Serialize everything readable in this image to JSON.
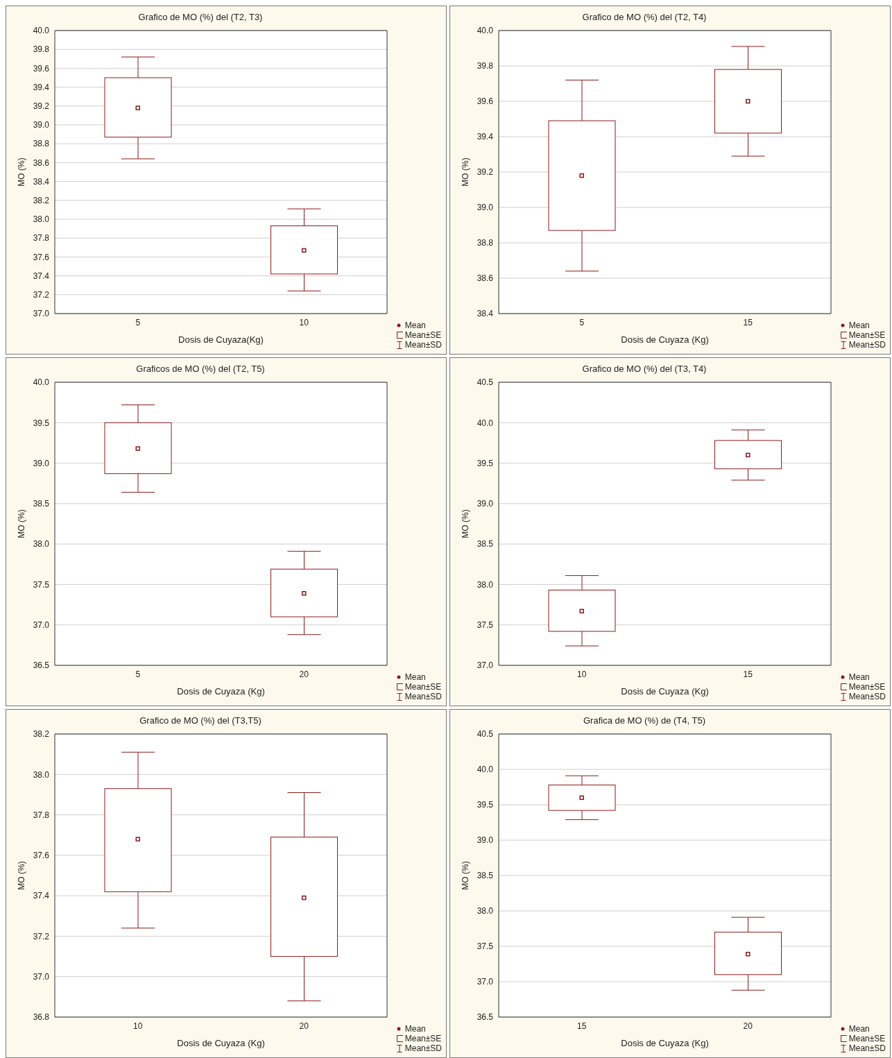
{
  "chart_data": [
    {
      "type": "box",
      "title": "Grafico de MO (%) del (T2, T3)",
      "xlabel": "Dosis de Cuyaza(Kg)",
      "ylabel": "MO (%)",
      "categories": [
        "5",
        "10"
      ],
      "color": "#8b1a1a",
      "marker": "square",
      "grid": "y",
      "ylim": [
        37.0,
        40.0
      ],
      "yticks": [
        {
          "value": 37.0,
          "label": "37.0"
        },
        {
          "value": 37.2,
          "label": "37.2"
        },
        {
          "value": 37.4,
          "label": "37.4"
        },
        {
          "value": 37.6,
          "label": "37.6"
        },
        {
          "value": 37.8,
          "label": "37.8"
        },
        {
          "value": 38.0,
          "label": "38.0"
        },
        {
          "value": 38.2,
          "label": "38.2"
        },
        {
          "value": 38.4,
          "label": "38.4"
        },
        {
          "value": 38.6,
          "label": "38.6"
        },
        {
          "value": 38.8,
          "label": "38.8"
        },
        {
          "value": 39.0,
          "label": "39.0"
        },
        {
          "value": 39.2,
          "label": "39.2"
        },
        {
          "value": 39.4,
          "label": "39.4"
        },
        {
          "value": 39.6,
          "label": "39.6"
        },
        {
          "value": 39.8,
          "label": "39.8"
        },
        {
          "value": 40.0,
          "label": "40.0"
        }
      ],
      "boxes": [
        {
          "low": 38.64,
          "q1": 38.87,
          "median": 39.18,
          "q3": 39.5,
          "high": 39.72
        },
        {
          "low": 37.24,
          "q1": 37.42,
          "median": 37.67,
          "q3": 37.93,
          "high": 38.11
        }
      ],
      "annotations": [
        "Mean",
        "Mean±SE",
        "Mean±SD"
      ]
    },
    {
      "type": "box",
      "title": "Grafico de MO (%) del (T2, T4)",
      "xlabel": "Dosis de Cuyaza (Kg)",
      "ylabel": "MO (%)",
      "categories": [
        "5",
        "15"
      ],
      "color": "#8b1a1a",
      "marker": "square",
      "grid": "y",
      "ylim": [
        38.4,
        40.0
      ],
      "yticks": [
        {
          "value": 38.4,
          "label": "38.4"
        },
        {
          "value": 38.6,
          "label": "38.6"
        },
        {
          "value": 38.8,
          "label": "38.8"
        },
        {
          "value": 39.0,
          "label": "39.0"
        },
        {
          "value": 39.2,
          "label": "39.2"
        },
        {
          "value": 39.4,
          "label": "39.4"
        },
        {
          "value": 39.6,
          "label": "39.6"
        },
        {
          "value": 39.8,
          "label": "39.8"
        },
        {
          "value": 40.0,
          "label": "40.0"
        }
      ],
      "boxes": [
        {
          "low": 38.64,
          "q1": 38.87,
          "median": 39.18,
          "q3": 39.49,
          "high": 39.72
        },
        {
          "low": 39.29,
          "q1": 39.42,
          "median": 39.6,
          "q3": 39.78,
          "high": 39.91
        }
      ],
      "annotations": [
        "Mean",
        "Mean±SE",
        "Mean±SD"
      ]
    },
    {
      "type": "box",
      "title": "Graficos de MO (%) del (T2, T5)",
      "xlabel": "Dosis de Cuyaza (Kg)",
      "ylabel": "MO (%)",
      "categories": [
        "5",
        "20"
      ],
      "color": "#8b1a1a",
      "marker": "square",
      "grid": "y",
      "ylim": [
        36.5,
        40.0
      ],
      "yticks": [
        {
          "value": 36.5,
          "label": "36.5"
        },
        {
          "value": 37.0,
          "label": "37.0"
        },
        {
          "value": 37.5,
          "label": "37.5"
        },
        {
          "value": 38.0,
          "label": "38.0"
        },
        {
          "value": 38.5,
          "label": "38.5"
        },
        {
          "value": 39.0,
          "label": "39.0"
        },
        {
          "value": 39.5,
          "label": "39.5"
        },
        {
          "value": 40.0,
          "label": "40.0"
        }
      ],
      "boxes": [
        {
          "low": 38.64,
          "q1": 38.87,
          "median": 39.18,
          "q3": 39.5,
          "high": 39.72
        },
        {
          "low": 36.88,
          "q1": 37.1,
          "median": 37.39,
          "q3": 37.69,
          "high": 37.91
        }
      ],
      "annotations": [
        "Mean",
        "Mean±SE",
        "Mean±SD"
      ]
    },
    {
      "type": "box",
      "title": "Grafico de MO (%) del (T3, T4)",
      "xlabel": "Dosis de Cuyaza (Kg)",
      "ylabel": "MO (%)",
      "categories": [
        "10",
        "15"
      ],
      "color": "#8b1a1a",
      "marker": "square",
      "grid": "y",
      "ylim": [
        37.0,
        40.5
      ],
      "yticks": [
        {
          "value": 37.0,
          "label": "37.0"
        },
        {
          "value": 37.5,
          "label": "37.5"
        },
        {
          "value": 38.0,
          "label": "38.0"
        },
        {
          "value": 38.5,
          "label": "38.5"
        },
        {
          "value": 39.0,
          "label": "39.0"
        },
        {
          "value": 39.5,
          "label": "39.5"
        },
        {
          "value": 40.0,
          "label": "40.0"
        },
        {
          "value": 40.5,
          "label": "40.5"
        }
      ],
      "boxes": [
        {
          "low": 37.24,
          "q1": 37.42,
          "median": 37.67,
          "q3": 37.93,
          "high": 38.11
        },
        {
          "low": 39.29,
          "q1": 39.43,
          "median": 39.6,
          "q3": 39.78,
          "high": 39.91
        }
      ],
      "annotations": [
        "Mean",
        "Mean±SE",
        "Mean±SD"
      ]
    },
    {
      "type": "box",
      "title": "Grafico de MO (%) del (T3,T5)",
      "xlabel": "Dosis de Cuyaza (Kg)",
      "ylabel": "MO (%)",
      "categories": [
        "10",
        "20"
      ],
      "color": "#8b1a1a",
      "marker": "square",
      "grid": "y",
      "ylim": [
        36.8,
        38.2
      ],
      "yticks": [
        {
          "value": 36.8,
          "label": "36.8"
        },
        {
          "value": 37.0,
          "label": "37.0"
        },
        {
          "value": 37.2,
          "label": "37.2"
        },
        {
          "value": 37.4,
          "label": "37.4"
        },
        {
          "value": 37.6,
          "label": "37.6"
        },
        {
          "value": 37.8,
          "label": "37.8"
        },
        {
          "value": 38.0,
          "label": "38.0"
        },
        {
          "value": 38.2,
          "label": "38.2"
        }
      ],
      "boxes": [
        {
          "low": 37.24,
          "q1": 37.42,
          "median": 37.68,
          "q3": 37.93,
          "high": 38.11
        },
        {
          "low": 36.88,
          "q1": 37.1,
          "median": 37.39,
          "q3": 37.69,
          "high": 37.91
        }
      ],
      "annotations": [
        "Mean",
        "Mean±SE",
        "Mean±SD"
      ]
    },
    {
      "type": "box",
      "title": "Grafica de MO (%) de (T4, T5)",
      "xlabel": "Dosis de Cuyaza (Kg)",
      "ylabel": "MO (%)",
      "categories": [
        "15",
        "20"
      ],
      "color": "#8b1a1a",
      "marker": "square",
      "grid": "y",
      "ylim": [
        36.5,
        40.5
      ],
      "yticks": [
        {
          "value": 36.5,
          "label": "36.5"
        },
        {
          "value": 37.0,
          "label": "37.0"
        },
        {
          "value": 37.5,
          "label": "37.5"
        },
        {
          "value": 38.0,
          "label": "38.0"
        },
        {
          "value": 38.5,
          "label": "38.5"
        },
        {
          "value": 39.0,
          "label": "39.0"
        },
        {
          "value": 39.5,
          "label": "39.5"
        },
        {
          "value": 40.0,
          "label": "40.0"
        },
        {
          "value": 40.5,
          "label": "40.5"
        }
      ],
      "boxes": [
        {
          "low": 39.29,
          "q1": 39.42,
          "median": 39.6,
          "q3": 39.78,
          "high": 39.91
        },
        {
          "low": 36.88,
          "q1": 37.1,
          "median": 37.39,
          "q3": 37.7,
          "high": 37.91
        }
      ],
      "annotations": [
        "Mean",
        "Mean±SE",
        "Mean±SD"
      ]
    }
  ]
}
